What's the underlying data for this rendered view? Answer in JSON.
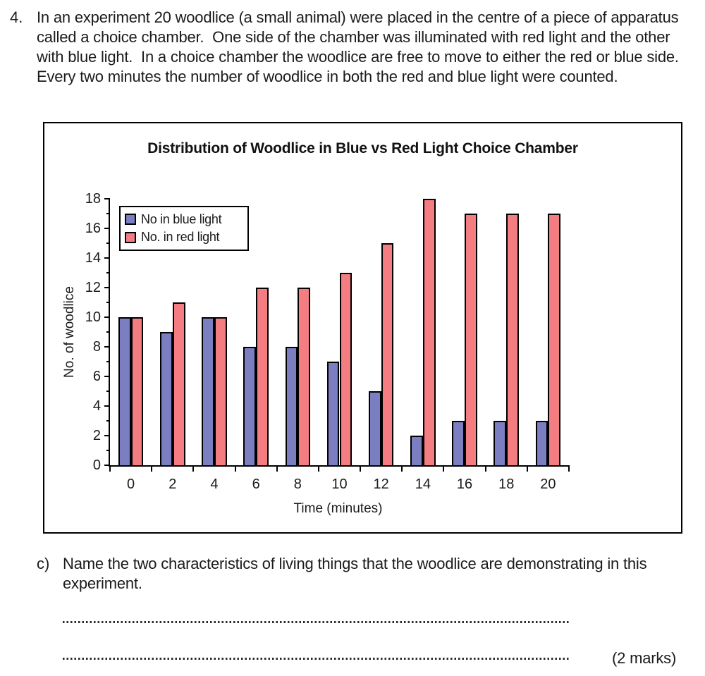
{
  "question": {
    "number": "4.",
    "text": "In an experiment 20 woodlice (a small animal) were placed in the centre of a piece of apparatus called a choice chamber.  One side of the chamber was illuminated with red light and the other with blue light.  In a choice chamber the woodlice are free to move to either the red or blue side.  Every two minutes the number of woodlice in both the red and blue light were counted."
  },
  "chart_data": {
    "type": "bar",
    "title": "Distribution of Woodlice in Blue vs Red Light Choice Chamber",
    "xlabel": "Time (minutes)",
    "ylabel": "No. of woodlice",
    "categories": [
      0,
      2,
      4,
      6,
      8,
      10,
      12,
      14,
      16,
      18,
      20
    ],
    "series": [
      {
        "name": "No in blue light",
        "color": "#7B7EC1",
        "values": [
          10,
          9,
          10,
          8,
          8,
          7,
          5,
          2,
          3,
          3,
          3
        ]
      },
      {
        "name": "No. in red light",
        "color": "#F47D82",
        "values": [
          10,
          11,
          10,
          12,
          12,
          13,
          15,
          18,
          17,
          17,
          17
        ]
      }
    ],
    "ylim": [
      0,
      18
    ],
    "ytick_step": 2,
    "minor_tick_step": 1,
    "grid": false,
    "legend_position": "top-left",
    "bar_outline_color": "#000000"
  },
  "sub_question": {
    "label": "c)",
    "text": "Name the two characteristics of living things that the woodlice are demonstrating in this experiment.",
    "marks": "(2 marks)"
  }
}
